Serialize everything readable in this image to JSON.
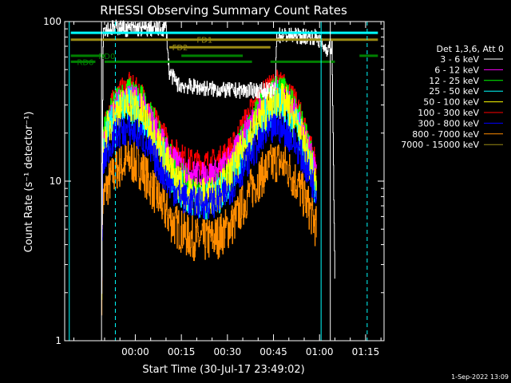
{
  "chart_data": {
    "type": "line",
    "title": "RHESSI Observing Summary Count Rates",
    "xlabel": "Start Time (30-Jul-17 23:49:02)",
    "ylabel": "Count Rate (s⁻¹ detector⁻¹)",
    "yscale": "log",
    "xlim": [
      -12,
      92
    ],
    "ylim": [
      1,
      100
    ],
    "x_ticks": [
      {
        "value": 11,
        "label": "00:00"
      },
      {
        "value": 26,
        "label": "00:15"
      },
      {
        "value": 41,
        "label": "00:30"
      },
      {
        "value": 56,
        "label": "00:45"
      },
      {
        "value": 71,
        "label": "01:00"
      },
      {
        "value": 86,
        "label": "01:15"
      }
    ],
    "y_ticks": [
      {
        "value": 1,
        "label": "1"
      },
      {
        "value": 10,
        "label": "10"
      },
      {
        "value": 100,
        "label": "100"
      }
    ],
    "legend_header": "Det 1,3,6, Att 0",
    "series": [
      {
        "name": "3 - 6 keV",
        "color": "#ffffff",
        "noise": 0.05,
        "points": [
          [
            0,
            2.2
          ],
          [
            0.5,
            90
          ],
          [
            6,
            92
          ],
          [
            8,
            90
          ],
          [
            20,
            90
          ],
          [
            21,
            92
          ],
          [
            22,
            48
          ],
          [
            25,
            40
          ],
          [
            40,
            37
          ],
          [
            55,
            37
          ],
          [
            56.5,
            37
          ],
          [
            57,
            82
          ],
          [
            60,
            82
          ],
          [
            70,
            80
          ],
          [
            72,
            70
          ],
          [
            73,
            68
          ],
          [
            75,
            68
          ],
          [
            76,
            2
          ]
        ]
      },
      {
        "name": "6 - 12 keV",
        "color": "#ff00ff",
        "noise": 0.08,
        "points": [
          [
            0,
            2
          ],
          [
            0.3,
            17
          ],
          [
            2,
            23
          ],
          [
            5,
            31
          ],
          [
            9,
            35
          ],
          [
            13,
            31
          ],
          [
            18,
            21
          ],
          [
            23,
            14
          ],
          [
            28,
            11.5
          ],
          [
            33,
            11
          ],
          [
            38,
            11.5
          ],
          [
            43,
            15
          ],
          [
            48,
            23
          ],
          [
            53,
            31
          ],
          [
            57,
            36
          ],
          [
            60,
            33
          ],
          [
            64,
            25
          ],
          [
            68,
            15
          ],
          [
            70,
            11
          ]
        ]
      },
      {
        "name": "12 - 25 keV",
        "color": "#00ff00",
        "noise": 0.1,
        "points": [
          [
            0,
            2
          ],
          [
            0.3,
            18
          ],
          [
            2,
            24
          ],
          [
            5,
            32
          ],
          [
            9,
            36
          ],
          [
            13,
            32
          ],
          [
            18,
            21
          ],
          [
            23,
            13
          ],
          [
            28,
            9.5
          ],
          [
            33,
            9
          ],
          [
            38,
            9.5
          ],
          [
            43,
            14
          ],
          [
            48,
            22
          ],
          [
            53,
            31
          ],
          [
            57,
            38
          ],
          [
            60,
            35
          ],
          [
            64,
            26
          ],
          [
            68,
            15
          ],
          [
            70,
            10
          ]
        ]
      },
      {
        "name": "25 - 50 keV",
        "color": "#00ffff",
        "noise": 0.12,
        "points": [
          [
            0,
            2
          ],
          [
            0.3,
            15
          ],
          [
            2,
            20
          ],
          [
            5,
            26
          ],
          [
            9,
            30
          ],
          [
            13,
            26
          ],
          [
            18,
            17
          ],
          [
            23,
            10.5
          ],
          [
            28,
            8
          ],
          [
            33,
            7.5
          ],
          [
            38,
            8
          ],
          [
            43,
            11.5
          ],
          [
            48,
            18
          ],
          [
            53,
            26
          ],
          [
            57,
            31
          ],
          [
            60,
            29
          ],
          [
            64,
            21
          ],
          [
            68,
            12
          ],
          [
            70,
            8.5
          ]
        ]
      },
      {
        "name": "50 - 100 keV",
        "color": "#ffff00",
        "noise": 0.12,
        "points": [
          [
            0,
            2
          ],
          [
            0.3,
            16
          ],
          [
            2,
            21
          ],
          [
            5,
            28
          ],
          [
            9,
            31
          ],
          [
            13,
            27
          ],
          [
            18,
            18
          ],
          [
            23,
            11
          ],
          [
            28,
            8.5
          ],
          [
            33,
            8
          ],
          [
            38,
            8.5
          ],
          [
            43,
            12
          ],
          [
            48,
            19
          ],
          [
            53,
            27
          ],
          [
            57,
            33
          ],
          [
            60,
            30
          ],
          [
            64,
            22
          ],
          [
            68,
            12.5
          ],
          [
            70,
            9
          ]
        ]
      },
      {
        "name": "100 - 300 keV",
        "color": "#ff0000",
        "noise": 0.08,
        "points": [
          [
            0,
            2
          ],
          [
            0.3,
            20
          ],
          [
            2,
            27
          ],
          [
            5,
            35
          ],
          [
            9,
            40
          ],
          [
            13,
            35
          ],
          [
            18,
            23
          ],
          [
            23,
            16
          ],
          [
            28,
            13.5
          ],
          [
            33,
            13
          ],
          [
            38,
            13.5
          ],
          [
            43,
            17
          ],
          [
            48,
            27
          ],
          [
            53,
            36
          ],
          [
            57,
            42
          ],
          [
            60,
            39
          ],
          [
            64,
            29
          ],
          [
            68,
            17
          ],
          [
            70,
            12.5
          ]
        ]
      },
      {
        "name": "300 - 800 keV",
        "color": "#0000ff",
        "noise": 0.1,
        "points": [
          [
            0,
            2
          ],
          [
            0.3,
            12
          ],
          [
            2,
            16
          ],
          [
            5,
            20
          ],
          [
            9,
            21
          ],
          [
            13,
            19
          ],
          [
            18,
            13
          ],
          [
            23,
            9
          ],
          [
            28,
            7.5
          ],
          [
            33,
            7.2
          ],
          [
            38,
            7.5
          ],
          [
            43,
            9.5
          ],
          [
            48,
            14
          ],
          [
            53,
            19
          ],
          [
            57,
            22
          ],
          [
            60,
            20.5
          ],
          [
            64,
            16
          ],
          [
            68,
            10.5
          ],
          [
            70,
            8.5
          ]
        ]
      },
      {
        "name": "800 - 7000 keV",
        "color": "#ff8c00",
        "noise": 0.14,
        "points": [
          [
            0,
            2
          ],
          [
            0.3,
            7.5
          ],
          [
            2,
            9.5
          ],
          [
            5,
            12
          ],
          [
            9,
            13.5
          ],
          [
            13,
            12
          ],
          [
            18,
            8
          ],
          [
            23,
            5.5
          ],
          [
            28,
            4.5
          ],
          [
            33,
            4.2
          ],
          [
            38,
            4.5
          ],
          [
            43,
            5.5
          ],
          [
            48,
            8.5
          ],
          [
            53,
            11.5
          ],
          [
            57,
            13.5
          ],
          [
            60,
            12.5
          ],
          [
            64,
            9.5
          ],
          [
            68,
            6.5
          ],
          [
            70,
            5
          ]
        ]
      },
      {
        "name": "7000 - 15000 keV",
        "color": "#9b8b14",
        "noise": 0,
        "points": [
          [
            0,
            1
          ],
          [
            0.3,
            1
          ]
        ]
      }
    ],
    "horizontal_bars": [
      {
        "label": "",
        "color": "#00ffff",
        "y": 85,
        "segments": [
          [
            -10,
            90
          ]
        ]
      },
      {
        "label": "FD1",
        "color": "#9b8b14",
        "y": 77,
        "segments": [
          [
            -10,
            90
          ]
        ],
        "label_x": 31
      },
      {
        "label": "FD2",
        "color": "#9b8b14",
        "y": 69,
        "segments": [
          [
            22,
            55
          ]
        ],
        "label_x": 23
      },
      {
        "label": "RD0",
        "color": "#008000",
        "y": 61,
        "segments": [
          [
            -10,
            1
          ],
          [
            26,
            46
          ],
          [
            84,
            90
          ]
        ],
        "label_x": -1
      },
      {
        "label": "RD6",
        "color": "#008000",
        "y": 56,
        "segments": [
          [
            -10,
            -2
          ],
          [
            1,
            49
          ],
          [
            55,
            76
          ]
        ],
        "label_x": -8
      }
    ],
    "vertical_lines": [
      {
        "color": "#00ffff",
        "x": -10.5,
        "style": "solid"
      },
      {
        "color": "#00ffff",
        "x": 4.5,
        "style": "dashed"
      },
      {
        "color": "#00ffff",
        "x": 71.5,
        "style": "solid"
      },
      {
        "color": "#00ffff",
        "x": 86.5,
        "style": "dashed"
      },
      {
        "color": "#ffffff",
        "x": 0,
        "style": "solid"
      },
      {
        "color": "#ffffff",
        "x": 74.5,
        "style": "solid"
      }
    ]
  },
  "footer_date": "1-Sep-2022 13:09"
}
